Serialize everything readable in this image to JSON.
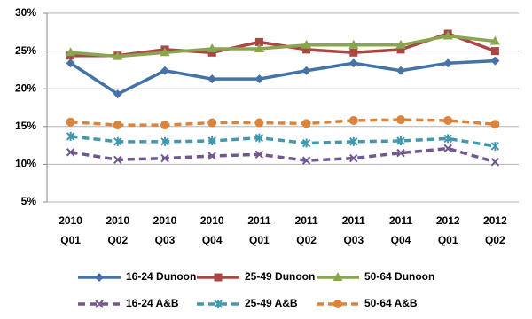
{
  "chart_data": {
    "type": "line",
    "categories": [
      "2010 Q01",
      "2010 Q02",
      "2010 Q03",
      "2010 Q04",
      "2011 Q01",
      "2011 Q02",
      "2011 Q03",
      "2011 Q04",
      "2012 Q01",
      "2012 Q02"
    ],
    "series": [
      {
        "name": "16-24 Dunoon",
        "color": "#4572a7",
        "marker": "diamond",
        "dashed": false,
        "values": [
          23.4,
          19.3,
          22.4,
          21.3,
          21.3,
          22.4,
          23.4,
          22.4,
          23.4,
          23.7
        ]
      },
      {
        "name": "25-49 Dunoon",
        "color": "#aa4643",
        "marker": "square",
        "dashed": false,
        "values": [
          24.4,
          24.4,
          25.2,
          24.8,
          26.2,
          25.2,
          24.8,
          25.2,
          27.3,
          25.0
        ]
      },
      {
        "name": "50-64 Dunoon",
        "color": "#89a54e",
        "marker": "triangle",
        "dashed": false,
        "values": [
          24.8,
          24.3,
          24.8,
          25.3,
          25.3,
          25.8,
          25.8,
          25.8,
          27.0,
          26.3
        ]
      },
      {
        "name": "16-24 A&B",
        "color": "#71588f",
        "marker": "x",
        "dashed": true,
        "values": [
          11.6,
          10.6,
          10.8,
          11.1,
          11.3,
          10.5,
          10.8,
          11.5,
          12.1,
          10.3
        ]
      },
      {
        "name": "25-49 A&B",
        "color": "#4198af",
        "marker": "star",
        "dashed": true,
        "values": [
          13.7,
          13.0,
          13.0,
          13.1,
          13.5,
          12.8,
          13.0,
          13.1,
          13.4,
          12.4
        ]
      },
      {
        "name": "50-64 A&B",
        "color": "#db843d",
        "marker": "circle",
        "dashed": true,
        "values": [
          15.6,
          15.2,
          15.2,
          15.5,
          15.5,
          15.4,
          15.8,
          15.9,
          15.8,
          15.3
        ]
      }
    ],
    "ylim": [
      5,
      30
    ],
    "yticks": [
      {
        "value": 5,
        "label": "5%"
      },
      {
        "value": 10,
        "label": "10%"
      },
      {
        "value": 15,
        "label": "15%"
      },
      {
        "value": 20,
        "label": "20%"
      },
      {
        "value": 25,
        "label": "25%"
      },
      {
        "value": 30,
        "label": "30%"
      }
    ],
    "grid": true,
    "legend": "bottom"
  }
}
